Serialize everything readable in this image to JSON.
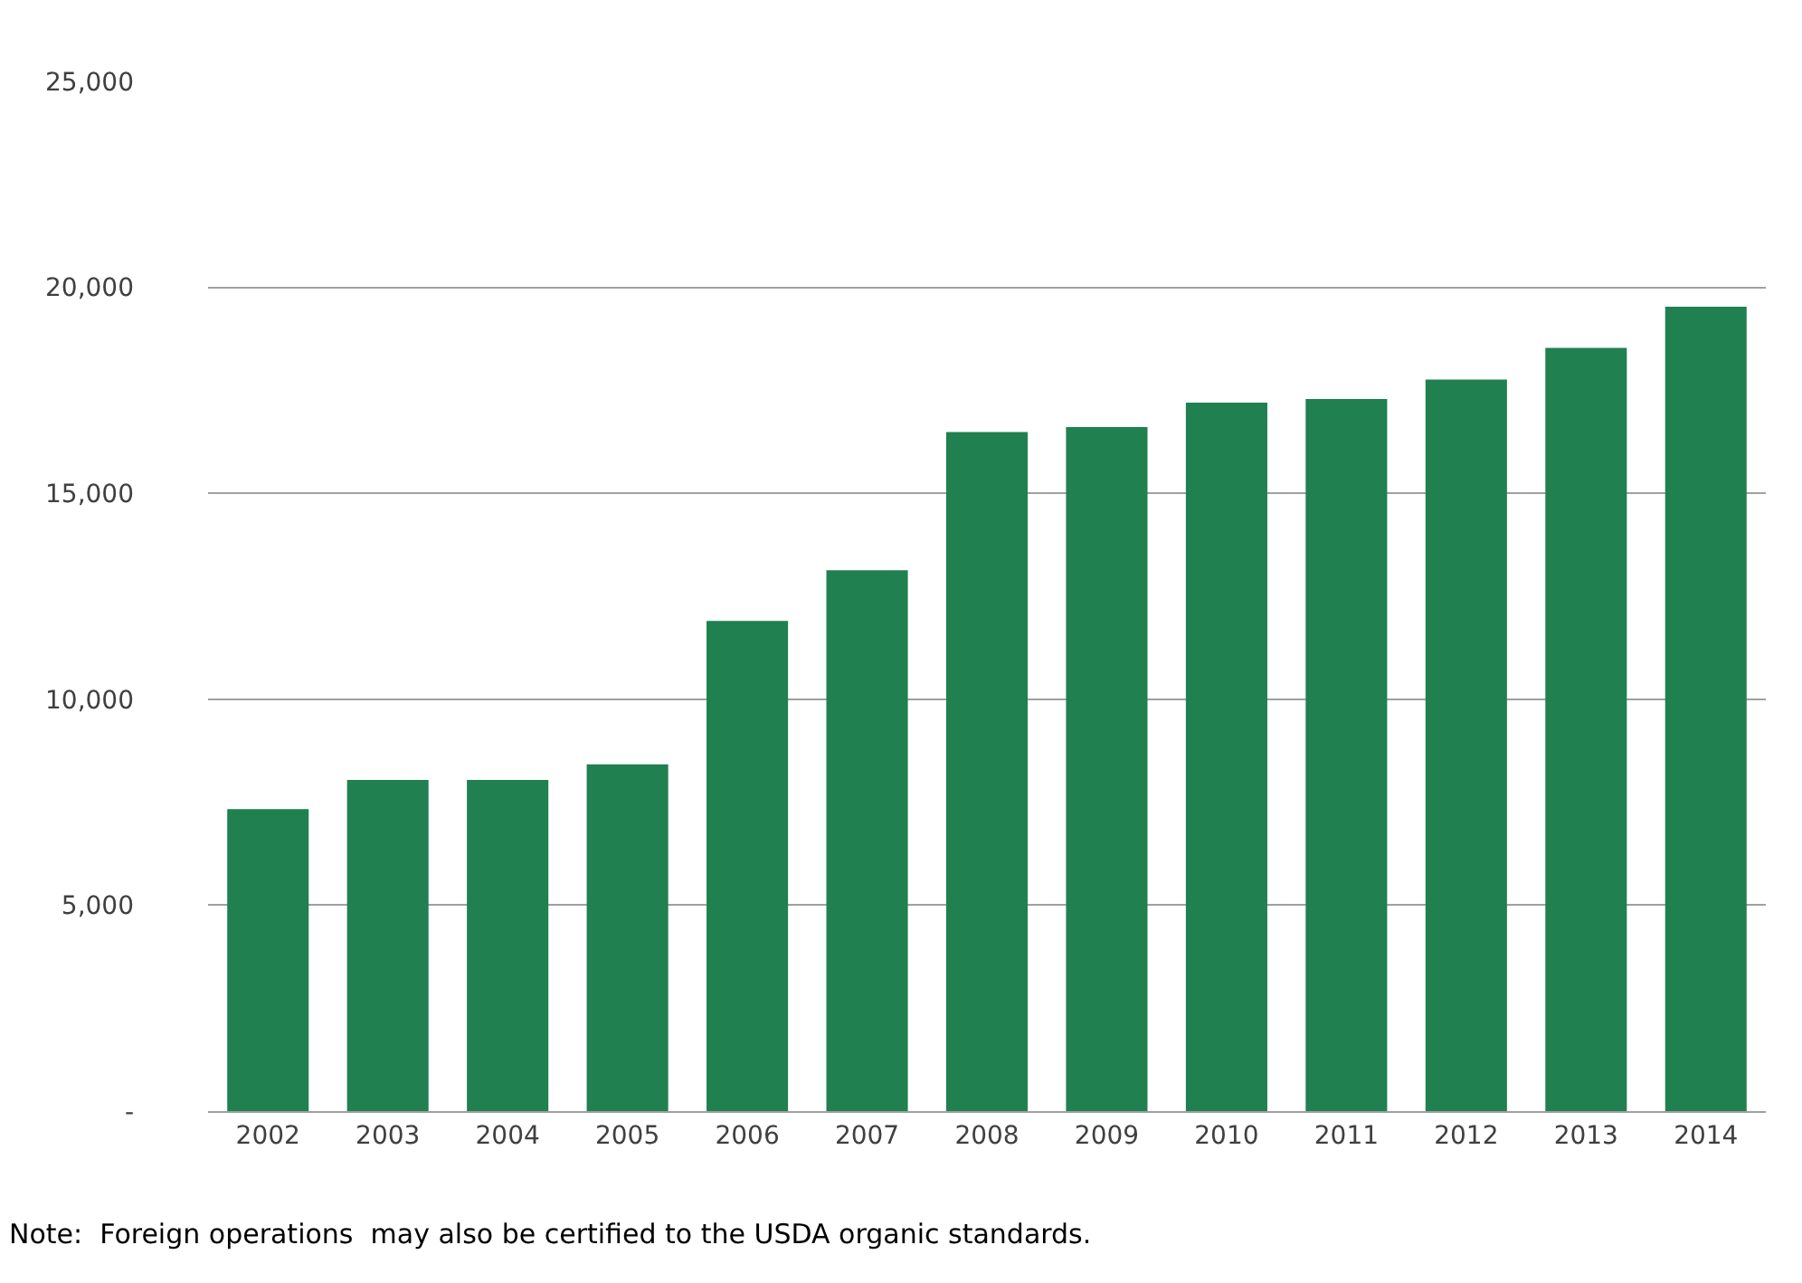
{
  "chart_data": {
    "type": "bar",
    "categories": [
      "2002",
      "2003",
      "2004",
      "2005",
      "2006",
      "2007",
      "2008",
      "2009",
      "2010",
      "2011",
      "2012",
      "2013",
      "2014"
    ],
    "values": [
      7330,
      8040,
      8040,
      8420,
      11900,
      13130,
      16490,
      16610,
      17200,
      17290,
      17760,
      18530,
      19530
    ],
    "color": "#208050",
    "ylim": [
      0,
      25000
    ],
    "yticks": [
      {
        "value": 0,
        "label": "-"
      },
      {
        "value": 5000,
        "label": "5,000"
      },
      {
        "value": 10000,
        "label": "10,000"
      },
      {
        "value": 15000,
        "label": "15,000"
      },
      {
        "value": 20000,
        "label": "20,000"
      },
      {
        "value": 25000,
        "label": "25,000"
      }
    ],
    "grid": "y",
    "annotations": [
      "Note:  Foreign operations  may also be certified to the USDA organic standards."
    ]
  }
}
